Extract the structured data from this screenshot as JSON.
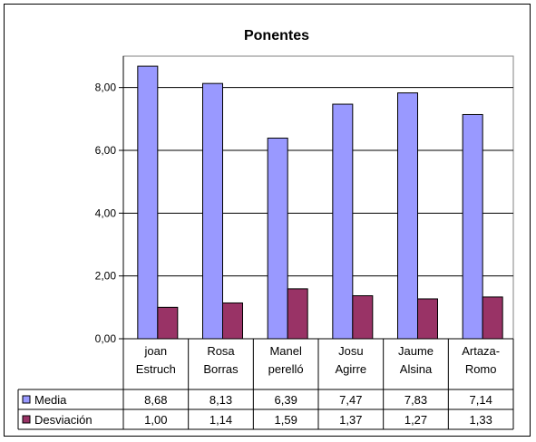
{
  "chart_data": {
    "type": "bar",
    "title": "Ponentes",
    "categories": [
      [
        "joan",
        "Estruch"
      ],
      [
        "Rosa",
        "Borras"
      ],
      [
        "Manel",
        "perelló"
      ],
      [
        "Josu",
        "Agirre"
      ],
      [
        "Jaume",
        "Alsina"
      ],
      [
        "Artaza-",
        "Romo"
      ]
    ],
    "series": [
      {
        "name": "Media",
        "color": "#9999ff",
        "values": [
          8.68,
          8.13,
          6.39,
          7.47,
          7.83,
          7.14
        ],
        "labels": [
          "8,68",
          "8,13",
          "6,39",
          "7,47",
          "7,83",
          "7,14"
        ]
      },
      {
        "name": "Desviación",
        "color": "#993366",
        "values": [
          1.0,
          1.14,
          1.59,
          1.37,
          1.27,
          1.33
        ],
        "labels": [
          "1,00",
          "1,14",
          "1,59",
          "1,37",
          "1,27",
          "1,33"
        ]
      }
    ],
    "ylim": [
      0,
      9
    ],
    "yticks": [
      0,
      2,
      4,
      6,
      8
    ],
    "ytick_labels": [
      "0,00",
      "2,00",
      "4,00",
      "6,00",
      "8,00"
    ],
    "grid": true,
    "legend": "data-table",
    "xlabel": "",
    "ylabel": ""
  }
}
